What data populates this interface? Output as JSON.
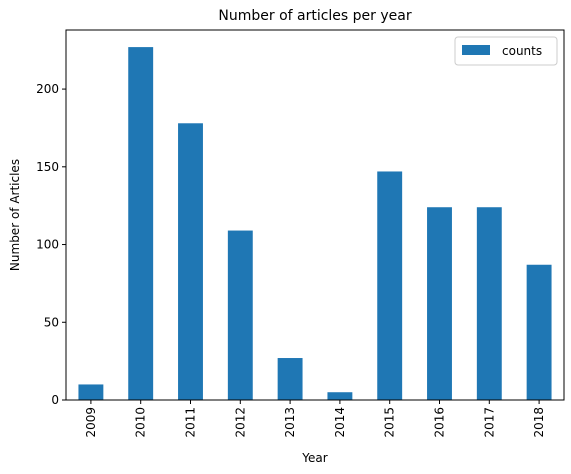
{
  "chart_data": {
    "type": "bar",
    "title": "Number of articles per year",
    "xlabel": "Year",
    "ylabel": "Number of Articles",
    "categories": [
      "2009",
      "2010",
      "2011",
      "2012",
      "2013",
      "2014",
      "2015",
      "2016",
      "2017",
      "2018"
    ],
    "series": [
      {
        "name": "counts",
        "values": [
          10,
          227,
          178,
          109,
          27,
          5,
          147,
          124,
          124,
          87
        ],
        "color": "#1f77b4"
      }
    ],
    "ylim": [
      0,
      238
    ],
    "yticks": [
      0,
      50,
      100,
      150,
      200
    ],
    "legend_position": "top-right",
    "grid": false
  }
}
